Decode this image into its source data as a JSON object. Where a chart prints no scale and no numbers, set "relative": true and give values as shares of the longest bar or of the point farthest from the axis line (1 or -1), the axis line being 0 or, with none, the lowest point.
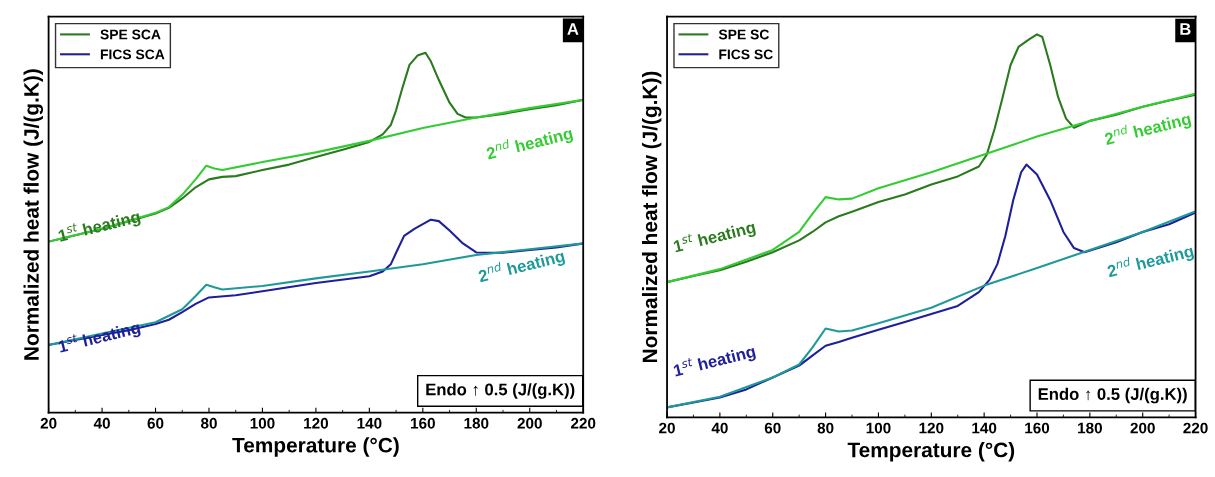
{
  "chart_data": [
    {
      "type": "line",
      "relative": true,
      "xlabel": "Temperature (°C)",
      "ylabel": "Normalized heat flow (J/(g.K))",
      "xlim": [
        20,
        220
      ],
      "xticks": [
        20,
        40,
        60,
        80,
        100,
        120,
        140,
        160,
        180,
        200,
        220
      ],
      "legend": "top left",
      "grid": false,
      "tick_labels": "x",
      "series": [
        {
          "name": "SPE SCA",
          "color": "#2a7a1e",
          "x": [
            20,
            30,
            40,
            50,
            60,
            65,
            70,
            75,
            80,
            85,
            90,
            100,
            110,
            120,
            130,
            140,
            145,
            148,
            150,
            152,
            155,
            158,
            161,
            163,
            166,
            170,
            173,
            176,
            180,
            190,
            200,
            210,
            220
          ],
          "values": [
            0.475,
            0.493,
            0.511,
            0.532,
            0.553,
            0.569,
            0.595,
            0.626,
            0.648,
            0.655,
            0.657,
            0.674,
            0.689,
            0.71,
            0.73,
            0.752,
            0.773,
            0.799,
            0.84,
            0.893,
            0.966,
            0.992,
            1,
            0.976,
            0.924,
            0.861,
            0.83,
            0.82,
            0.82,
            0.83,
            0.843,
            0.854,
            0.869
          ]
        },
        {
          "color": "#33cc33",
          "x": [
            20,
            40,
            60,
            65,
            70,
            75,
            79,
            82,
            85,
            100,
            120,
            140,
            160,
            180,
            200,
            220
          ],
          "values": [
            0.475,
            0.511,
            0.555,
            0.571,
            0.605,
            0.648,
            0.686,
            0.678,
            0.674,
            0.696,
            0.723,
            0.755,
            0.791,
            0.82,
            0.846,
            0.869
          ]
        },
        {
          "name": "FICS SCA",
          "color": "#1f1f99",
          "x": [
            20,
            30,
            40,
            50,
            60,
            65,
            70,
            75,
            80,
            90,
            100,
            120,
            140,
            145,
            148,
            150,
            153,
            157,
            163,
            166,
            170,
            175,
            180,
            190,
            200,
            210,
            220
          ],
          "values": [
            0.188,
            0.202,
            0.216,
            0.229,
            0.246,
            0.258,
            0.279,
            0.302,
            0.32,
            0.326,
            0.337,
            0.36,
            0.379,
            0.392,
            0.412,
            0.444,
            0.491,
            0.511,
            0.536,
            0.532,
            0.506,
            0.47,
            0.445,
            0.444,
            0.452,
            0.459,
            0.47
          ]
        },
        {
          "color": "#1f9999",
          "x": [
            20,
            40,
            60,
            70,
            75,
            79,
            82,
            85,
            100,
            120,
            140,
            160,
            180,
            200,
            220
          ],
          "values": [
            0.188,
            0.22,
            0.251,
            0.287,
            0.324,
            0.355,
            0.348,
            0.342,
            0.352,
            0.373,
            0.392,
            0.412,
            0.438,
            0.454,
            0.47
          ]
        }
      ],
      "annotations": [
        "1$^{st}$ heating",
        "2$^{nd}$ heating",
        "1$^{st}$ heating",
        "2$^{nd}$ heating",
        "Endo ↑ 0.5 (J/(g.K))",
        "A"
      ]
    },
    {
      "type": "line",
      "relative": true,
      "xlabel": "Temperature (°C)",
      "ylabel": "Normalized heat flow (J/(g.K))",
      "xlim": [
        20,
        220
      ],
      "xticks": [
        20,
        40,
        60,
        80,
        100,
        120,
        140,
        160,
        180,
        200,
        220
      ],
      "legend": "top left",
      "grid": false,
      "tick_labels": "x",
      "series": [
        {
          "name": "SPE SC",
          "color": "#2a7a1e",
          "x": [
            20,
            30,
            40,
            50,
            60,
            70,
            75,
            80,
            85,
            90,
            100,
            110,
            120,
            130,
            138,
            141,
            144,
            147,
            150,
            153,
            157,
            160,
            162,
            165,
            168,
            171,
            174,
            180,
            190,
            200,
            210,
            220
          ],
          "values": [
            0.353,
            0.369,
            0.384,
            0.406,
            0.431,
            0.462,
            0.484,
            0.509,
            0.525,
            0.537,
            0.562,
            0.582,
            0.608,
            0.629,
            0.655,
            0.686,
            0.754,
            0.836,
            0.92,
            0.967,
            0.987,
            1,
            0.993,
            0.92,
            0.836,
            0.78,
            0.756,
            0.774,
            0.79,
            0.811,
            0.827,
            0.842
          ]
        },
        {
          "color": "#33cc33",
          "x": [
            20,
            40,
            60,
            70,
            75,
            80,
            85,
            90,
            100,
            120,
            140,
            160,
            180,
            200,
            220
          ],
          "values": [
            0.353,
            0.387,
            0.437,
            0.484,
            0.531,
            0.575,
            0.569,
            0.571,
            0.598,
            0.64,
            0.686,
            0.733,
            0.774,
            0.811,
            0.845
          ]
        },
        {
          "name": "FICS SC",
          "color": "#1f1f99",
          "x": [
            20,
            30,
            40,
            50,
            60,
            70,
            75,
            80,
            85,
            90,
            100,
            110,
            120,
            130,
            138,
            142,
            145,
            148,
            151,
            154,
            156,
            160,
            165,
            170,
            174,
            178,
            190,
            200,
            210,
            220
          ],
          "values": [
            0.026,
            0.039,
            0.052,
            0.073,
            0.104,
            0.135,
            0.161,
            0.187,
            0.197,
            0.208,
            0.229,
            0.249,
            0.27,
            0.291,
            0.327,
            0.359,
            0.4,
            0.473,
            0.567,
            0.64,
            0.66,
            0.634,
            0.567,
            0.484,
            0.442,
            0.431,
            0.457,
            0.484,
            0.504,
            0.535
          ]
        },
        {
          "color": "#1f9999",
          "x": [
            20,
            40,
            60,
            70,
            75,
            80,
            85,
            90,
            100,
            120,
            140,
            160,
            180,
            200,
            220
          ],
          "values": [
            0.026,
            0.054,
            0.104,
            0.138,
            0.182,
            0.232,
            0.224,
            0.227,
            0.246,
            0.286,
            0.344,
            0.39,
            0.437,
            0.484,
            0.538
          ]
        }
      ],
      "annotations": [
        "1$^{st}$ heating",
        "2$^{nd}$ heating",
        "1$^{st}$ heating",
        "2$^{nd}$ heating",
        "Endo ↑ 0.5 (J/(g.K))",
        "B"
      ]
    }
  ]
}
